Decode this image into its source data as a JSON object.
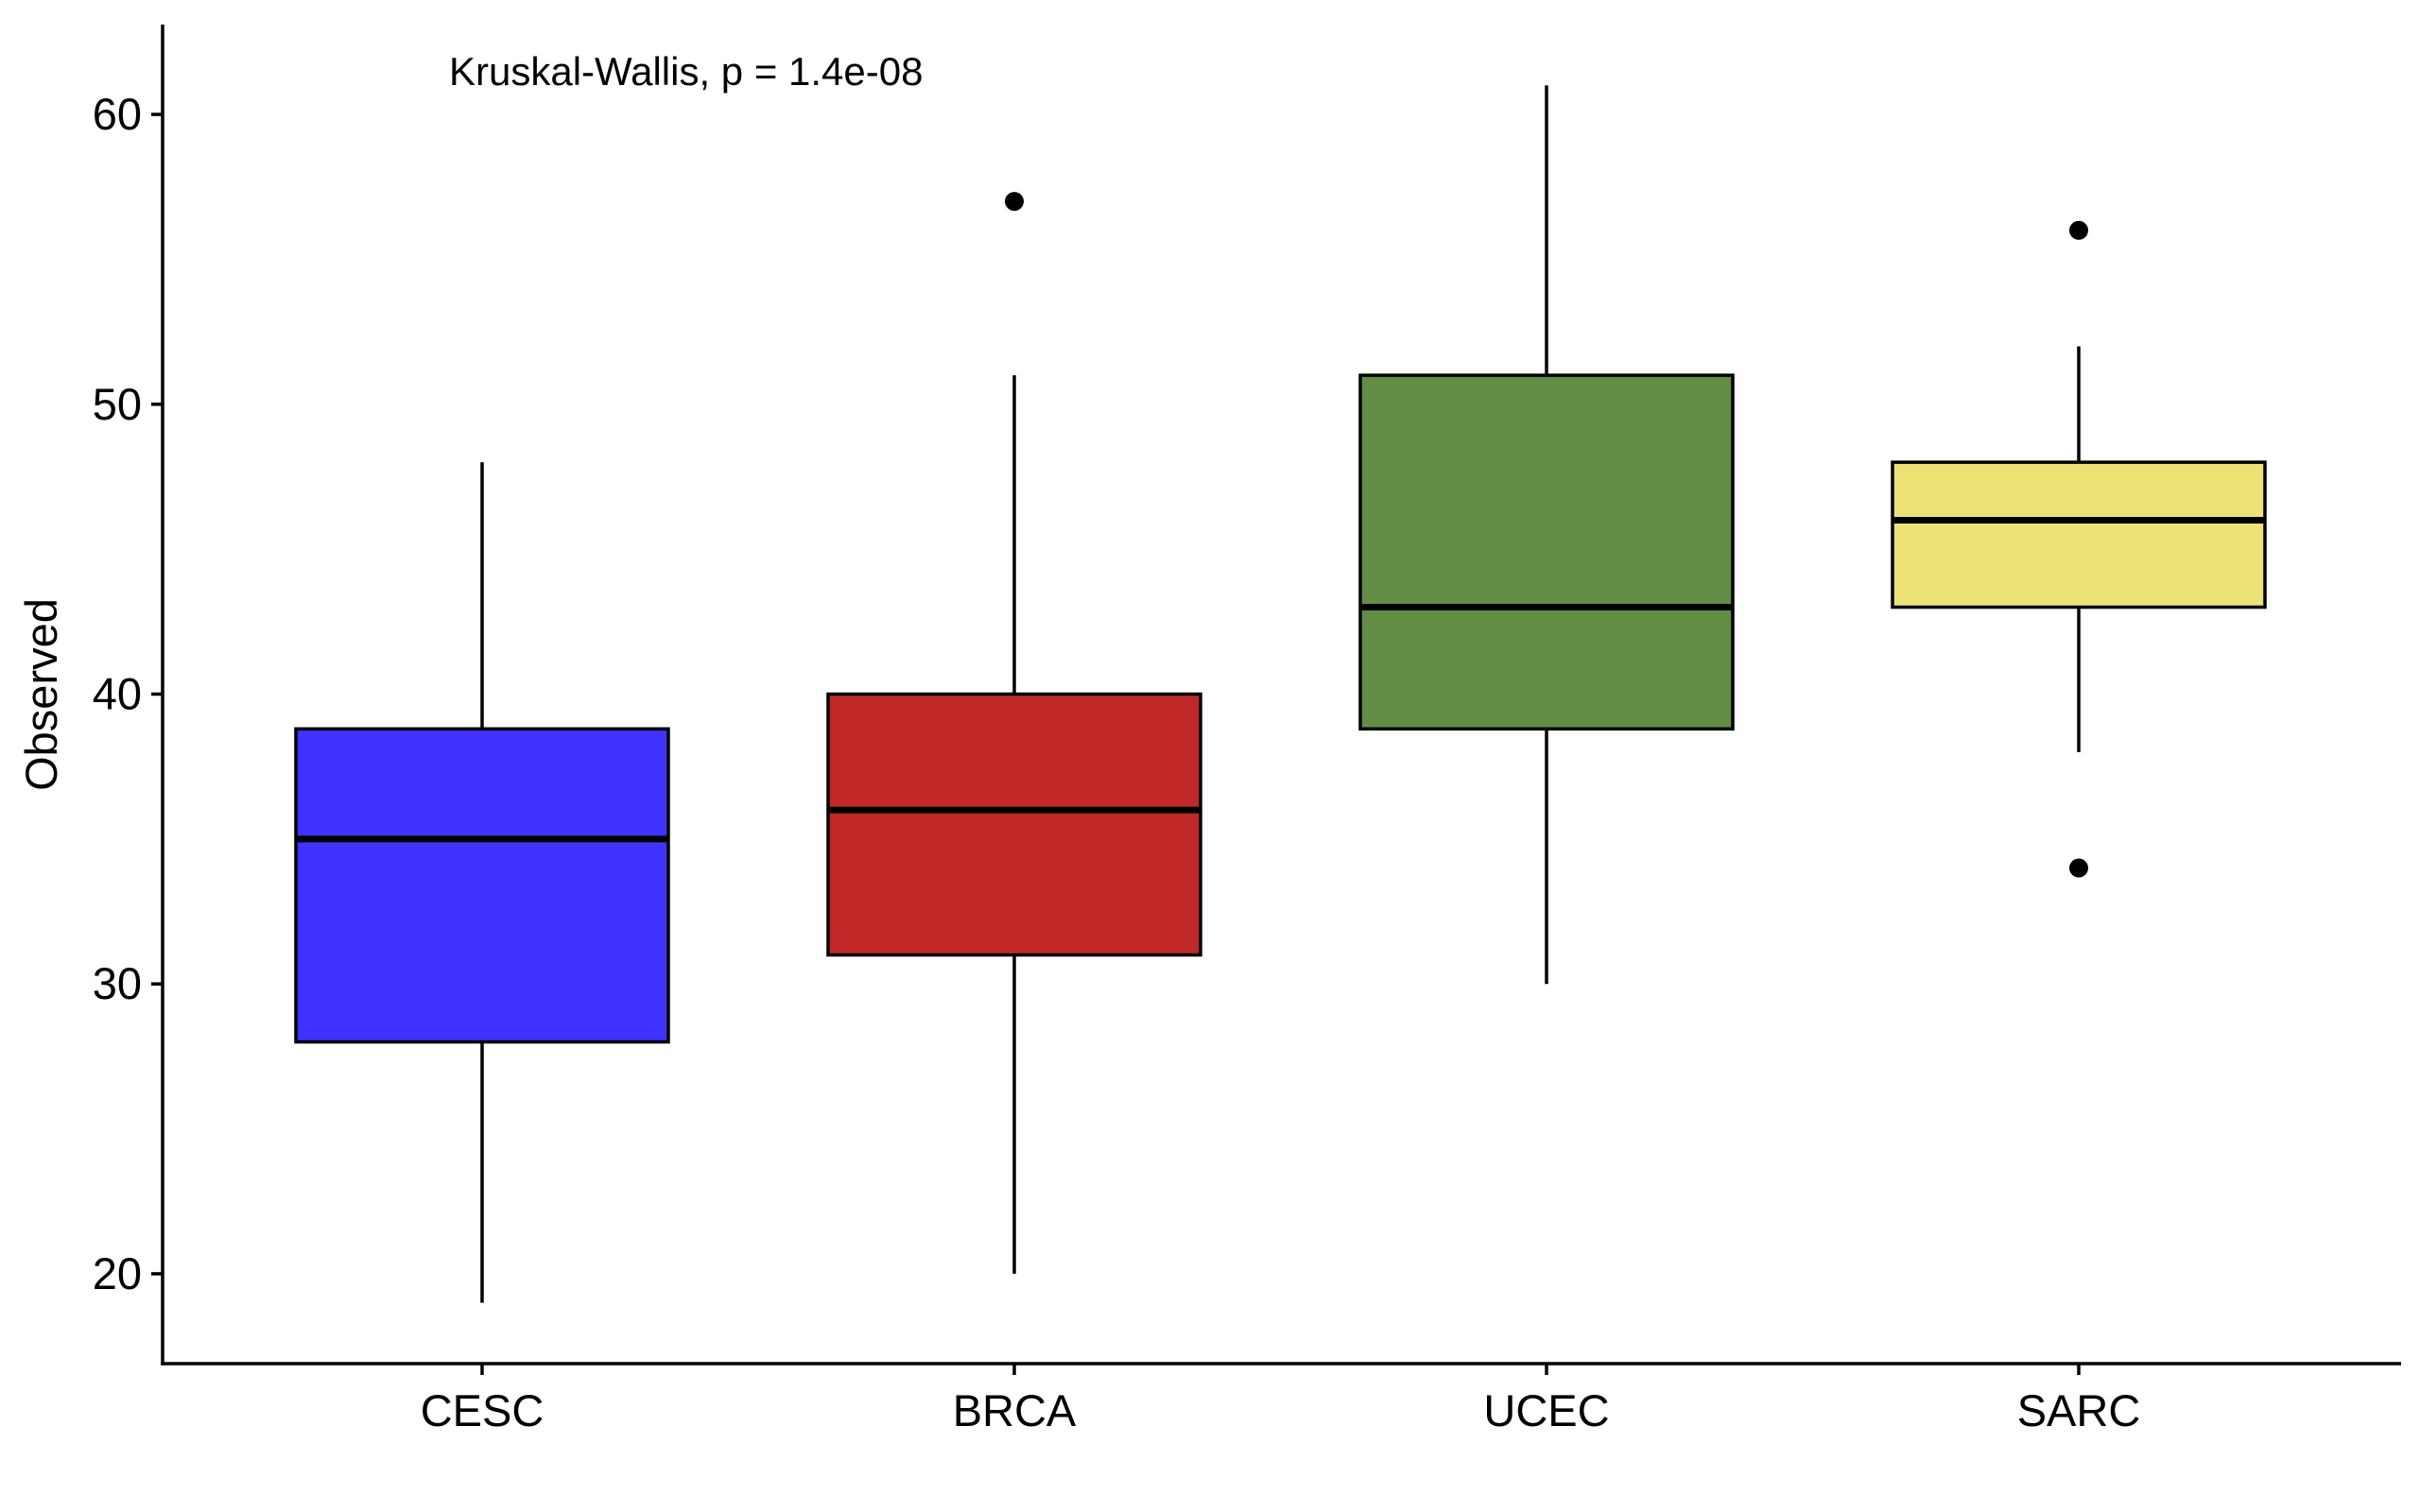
{
  "chart_data": {
    "type": "boxplot",
    "title": "",
    "xlabel": "",
    "ylabel": "Observed",
    "ylim": [
      16.9,
      63.1
    ],
    "yticks": [
      20,
      30,
      40,
      50,
      60
    ],
    "yticks_text": [
      "20",
      "30",
      "40",
      "50",
      "60"
    ],
    "grid": false,
    "legend": "none",
    "annotation": "Kruskal-Wallis, p = 1.4e-08",
    "categories": [
      "CESC",
      "BRCA",
      "UCEC",
      "SARC"
    ],
    "boxes": [
      {
        "label": "CESC",
        "color": "#4033FF",
        "whisker_low": 19,
        "q1": 28,
        "median": 35,
        "q3": 38.8,
        "whisker_high": 48,
        "outliers": []
      },
      {
        "label": "BRCA",
        "color": "#C12828",
        "whisker_low": 20,
        "q1": 31,
        "median": 36,
        "q3": 40,
        "whisker_high": 51,
        "outliers": [
          57
        ]
      },
      {
        "label": "UCEC",
        "color": "#638D45",
        "whisker_low": 30,
        "q1": 38.8,
        "median": 43,
        "q3": 51,
        "whisker_high": 61,
        "outliers": []
      },
      {
        "label": "SARC",
        "color": "#ECE276",
        "whisker_low": 38,
        "q1": 43,
        "median": 46,
        "q3": 48,
        "whisker_high": 52,
        "outliers": [
          34,
          56
        ]
      }
    ]
  }
}
